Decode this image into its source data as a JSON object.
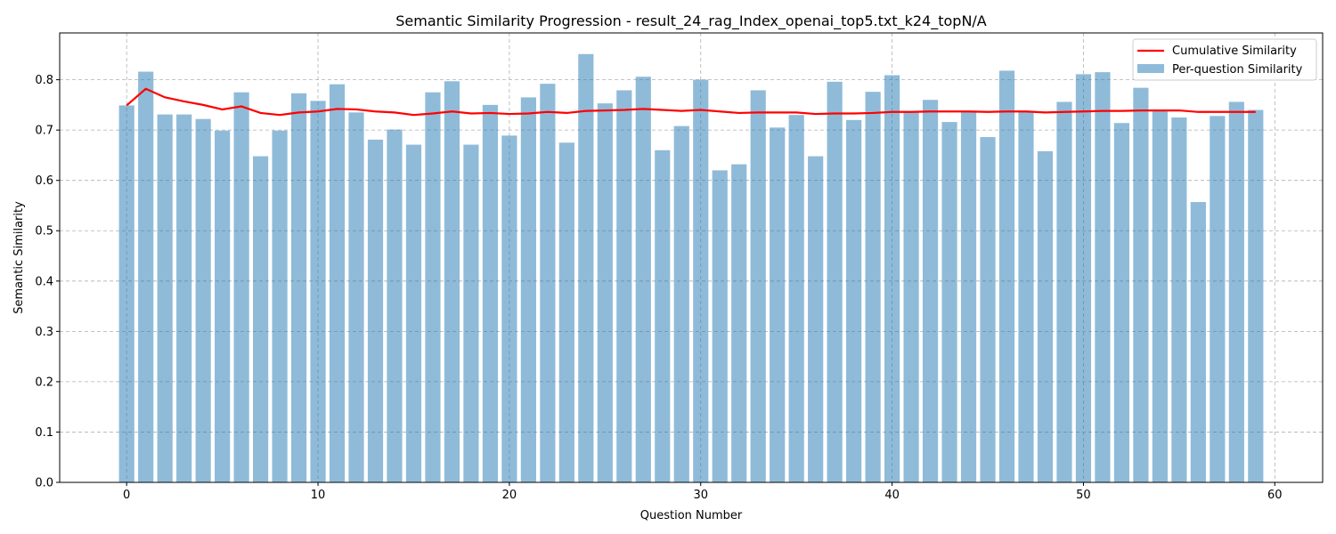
{
  "chart_data": {
    "type": "bar",
    "title": "Semantic Similarity Progression - result_24_rag_Index_openai_top5.txt_k24_topN/A",
    "xlabel": "Question Number",
    "ylabel": "Semantic Similarity",
    "xlim": [
      -3.5,
      62.5
    ],
    "ylim": [
      0,
      0.893
    ],
    "xticks": [
      0,
      10,
      20,
      30,
      40,
      50,
      60
    ],
    "yticks": [
      0.0,
      0.1,
      0.2,
      0.3,
      0.4,
      0.5,
      0.6,
      0.7,
      0.8
    ],
    "ytick_labels": [
      "0.0",
      "0.1",
      "0.2",
      "0.3",
      "0.4",
      "0.5",
      "0.6",
      "0.7",
      "0.8"
    ],
    "grid": true,
    "legend_position": "top-right",
    "x": [
      0,
      1,
      2,
      3,
      4,
      5,
      6,
      7,
      8,
      9,
      10,
      11,
      12,
      13,
      14,
      15,
      16,
      17,
      18,
      19,
      20,
      21,
      22,
      23,
      24,
      25,
      26,
      27,
      28,
      29,
      30,
      31,
      32,
      33,
      34,
      35,
      36,
      37,
      38,
      39,
      40,
      41,
      42,
      43,
      44,
      45,
      46,
      47,
      48,
      49,
      50,
      51,
      52,
      53,
      54,
      55,
      56,
      57,
      58,
      59
    ],
    "series": [
      {
        "name": "Cumulative Similarity",
        "type": "line",
        "color": "#ff0000",
        "values": [
          0.749,
          0.782,
          0.765,
          0.757,
          0.75,
          0.741,
          0.747,
          0.734,
          0.73,
          0.735,
          0.737,
          0.742,
          0.741,
          0.737,
          0.735,
          0.73,
          0.733,
          0.737,
          0.733,
          0.734,
          0.732,
          0.733,
          0.736,
          0.734,
          0.738,
          0.739,
          0.74,
          0.742,
          0.74,
          0.738,
          0.74,
          0.737,
          0.734,
          0.735,
          0.735,
          0.735,
          0.732,
          0.733,
          0.733,
          0.734,
          0.736,
          0.736,
          0.737,
          0.737,
          0.737,
          0.736,
          0.737,
          0.737,
          0.735,
          0.736,
          0.737,
          0.738,
          0.738,
          0.739,
          0.739,
          0.739,
          0.736,
          0.736,
          0.736,
          0.736
        ]
      },
      {
        "name": "Per-question Similarity",
        "type": "bar",
        "color": "#1f77b4",
        "values": [
          0.749,
          0.816,
          0.731,
          0.731,
          0.722,
          0.699,
          0.775,
          0.648,
          0.699,
          0.773,
          0.758,
          0.791,
          0.735,
          0.681,
          0.701,
          0.671,
          0.775,
          0.797,
          0.671,
          0.75,
          0.689,
          0.765,
          0.792,
          0.675,
          0.851,
          0.753,
          0.779,
          0.806,
          0.66,
          0.708,
          0.8,
          0.62,
          0.632,
          0.779,
          0.705,
          0.73,
          0.648,
          0.796,
          0.72,
          0.776,
          0.809,
          0.735,
          0.76,
          0.716,
          0.737,
          0.686,
          0.818,
          0.738,
          0.658,
          0.756,
          0.811,
          0.815,
          0.714,
          0.784,
          0.74,
          0.725,
          0.557,
          0.728,
          0.756,
          0.74
        ]
      }
    ]
  }
}
